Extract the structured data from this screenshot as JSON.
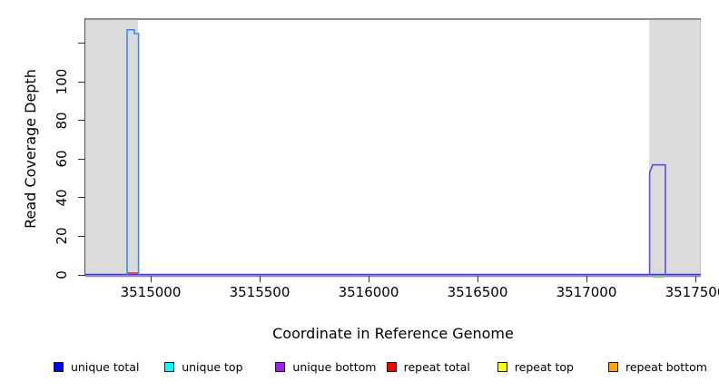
{
  "chart_data": {
    "type": "line",
    "title": "",
    "xlabel": "Coordinate in Reference Genome",
    "ylabel": "Read Coverage Depth",
    "xlim": [
      3514700,
      3517525
    ],
    "ylim": [
      0,
      133
    ],
    "grid": false,
    "x_ticks": [
      {
        "value": 3515000,
        "label": "3515000"
      },
      {
        "value": 3515500,
        "label": "3515500"
      },
      {
        "value": 3516000,
        "label": "3516000"
      },
      {
        "value": 3516500,
        "label": "3516500"
      },
      {
        "value": 3517000,
        "label": "3517000"
      },
      {
        "value": 3517500,
        "label": "3517500"
      }
    ],
    "y_ticks": [
      {
        "value": 0,
        "label": "0"
      },
      {
        "value": 20,
        "label": "20"
      },
      {
        "value": 40,
        "label": "40"
      },
      {
        "value": 60,
        "label": "60"
      },
      {
        "value": 80,
        "label": "80"
      },
      {
        "value": 100,
        "label": "100"
      },
      {
        "value": 120,
        "label": ""
      }
    ],
    "shaded_regions": [
      {
        "name": "masked-region-left",
        "start": 3514700,
        "end": 3514942,
        "fill": "#DBDBDB"
      },
      {
        "name": "masked-region-right",
        "start": 3517288,
        "end": 3517525,
        "fill": "#DBDBDB",
        "edge": "#C2C2C2"
      }
    ],
    "frame": {
      "top_border_color": "#8E8E8E",
      "axis_color": "#555555",
      "tick_color": "#333333"
    },
    "series": [
      {
        "name": "unique-bottom-baseline",
        "legend": "unique bottom",
        "color": "#8F7FE8",
        "width": 2.4,
        "dy": 1,
        "points": [
          [
            3514700,
            0
          ],
          [
            3517525,
            0
          ]
        ]
      },
      {
        "name": "unique-total-baseline",
        "legend": "unique total",
        "color": "#3A3AC4",
        "width": 1.2,
        "dy": -0.6,
        "points": [
          [
            3514700,
            0
          ],
          [
            3517525,
            0
          ]
        ]
      },
      {
        "name": "repeat-total-segment",
        "legend": "repeat total",
        "color": "#EE3328",
        "width": 1.6,
        "dy": 0,
        "points": [
          [
            3514892,
            1
          ],
          [
            3514946,
            1
          ]
        ]
      },
      {
        "name": "repeat-top-segment",
        "legend": "repeat top",
        "color": "#79C878",
        "width": 1.8,
        "dy": 2,
        "points": [
          [
            3517304,
            0
          ],
          [
            3517360,
            0
          ]
        ]
      },
      {
        "name": "unique-top-peak",
        "legend": "unique top",
        "color": "#3E8BF0",
        "width": 1.6,
        "dy": 0,
        "points": [
          [
            3514892,
            0
          ],
          [
            3514892,
            127
          ],
          [
            3514925,
            127
          ],
          [
            3514925,
            125
          ],
          [
            3514944,
            125
          ],
          [
            3514944,
            0
          ]
        ]
      },
      {
        "name": "unique-bottom-peak",
        "legend": "unique bottom",
        "color": "#6A48DC",
        "width": 1.6,
        "dy": 0,
        "points": [
          [
            3517290,
            0
          ],
          [
            3517290,
            53
          ],
          [
            3517304,
            57
          ],
          [
            3517362,
            57
          ],
          [
            3517362,
            0
          ]
        ]
      }
    ]
  },
  "legend": {
    "items": [
      {
        "label": "unique total",
        "color": "#0000FF"
      },
      {
        "label": "unique top",
        "color": "#00FFFF"
      },
      {
        "label": "unique bottom",
        "color": "#A020F0"
      },
      {
        "label": "repeat total",
        "color": "#FF0000"
      },
      {
        "label": "repeat top",
        "color": "#FFFF00"
      },
      {
        "label": "repeat bottom",
        "color": "#FFA500"
      }
    ]
  }
}
